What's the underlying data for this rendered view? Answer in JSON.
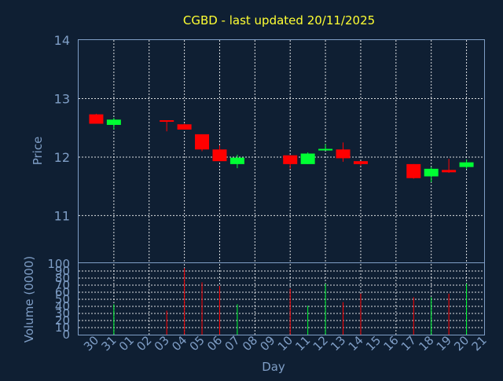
{
  "chart_data": {
    "type": "candlestick",
    "title": "CGBD - last updated 20/11/2025",
    "price_panel": {
      "ylabel": "Price",
      "ylim": [
        10.2,
        14.0
      ],
      "yticks": [
        "11",
        "12",
        "13",
        "14"
      ],
      "ytick_values": [
        11,
        12,
        13,
        14
      ]
    },
    "volume_panel": {
      "ylabel": "Volume (0000)",
      "ylim": [
        0,
        100
      ],
      "yticks": [
        "0",
        "10",
        "20",
        "30",
        "40",
        "50",
        "60",
        "70",
        "80",
        "90",
        "100"
      ],
      "ytick_values": [
        0,
        10,
        20,
        30,
        40,
        50,
        60,
        70,
        80,
        90,
        100
      ]
    },
    "xlabel": "Day",
    "x_ticks": [
      "30",
      "31",
      "01",
      "02",
      "03",
      "04",
      "05",
      "06",
      "07",
      "08",
      "09",
      "10",
      "11",
      "12",
      "13",
      "14",
      "15",
      "16",
      "17",
      "18",
      "19",
      "20",
      "21"
    ],
    "colors": {
      "up": "#00ff33",
      "down": "#ff0000"
    },
    "candles": [
      {
        "day": "30",
        "open": 12.73,
        "high": 12.74,
        "low": 12.57,
        "close": 12.57,
        "volume": 0
      },
      {
        "day": "31",
        "open": 12.55,
        "high": 12.67,
        "low": 12.47,
        "close": 12.64,
        "volume": 43
      },
      {
        "day": "03",
        "open": 12.63,
        "high": 12.63,
        "low": 12.44,
        "close": 12.62,
        "volume": 34
      },
      {
        "day": "04",
        "open": 12.56,
        "high": 12.57,
        "low": 12.47,
        "close": 12.47,
        "volume": 94
      },
      {
        "day": "05",
        "open": 12.39,
        "high": 12.39,
        "low": 12.1,
        "close": 12.13,
        "volume": 74
      },
      {
        "day": "06",
        "open": 12.13,
        "high": 12.2,
        "low": 11.93,
        "close": 11.93,
        "volume": 69
      },
      {
        "day": "07",
        "open": 11.88,
        "high": 12.04,
        "low": 11.81,
        "close": 11.99,
        "volume": 43
      },
      {
        "day": "10",
        "open": 12.03,
        "high": 12.03,
        "low": 11.8,
        "close": 11.88,
        "volume": 65
      },
      {
        "day": "11",
        "open": 11.88,
        "high": 12.08,
        "low": 11.88,
        "close": 12.06,
        "volume": 41
      },
      {
        "day": "12",
        "open": 12.12,
        "high": 12.22,
        "low": 12.12,
        "close": 12.14,
        "volume": 72
      },
      {
        "day": "13",
        "open": 12.13,
        "high": 12.25,
        "low": 11.92,
        "close": 11.98,
        "volume": 46
      },
      {
        "day": "14",
        "open": 11.93,
        "high": 11.93,
        "low": 11.85,
        "close": 11.88,
        "volume": 58
      },
      {
        "day": "17",
        "open": 11.88,
        "high": 11.88,
        "low": 11.63,
        "close": 11.64,
        "volume": 53
      },
      {
        "day": "18",
        "open": 11.67,
        "high": 11.83,
        "low": 11.57,
        "close": 11.8,
        "volume": 53
      },
      {
        "day": "19",
        "open": 11.78,
        "high": 11.97,
        "low": 11.73,
        "close": 11.74,
        "volume": 58
      },
      {
        "day": "20",
        "open": 11.83,
        "high": 11.96,
        "low": 11.8,
        "close": 11.91,
        "volume": 72
      }
    ]
  }
}
